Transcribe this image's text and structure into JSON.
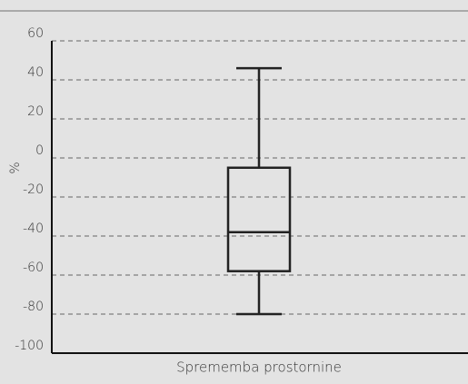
{
  "chart_data": {
    "type": "box",
    "categories": [
      "Sprememba prostornine"
    ],
    "boxes": [
      {
        "min": -80,
        "q1": -58,
        "median": -38,
        "q3": -5,
        "max": 46
      }
    ],
    "color": "#222222",
    "ylabel": "%",
    "ylim": [
      -100,
      60
    ],
    "yticks": [
      -100,
      -80,
      -60,
      -40,
      -20,
      0,
      20,
      40,
      60
    ],
    "grid": true
  }
}
